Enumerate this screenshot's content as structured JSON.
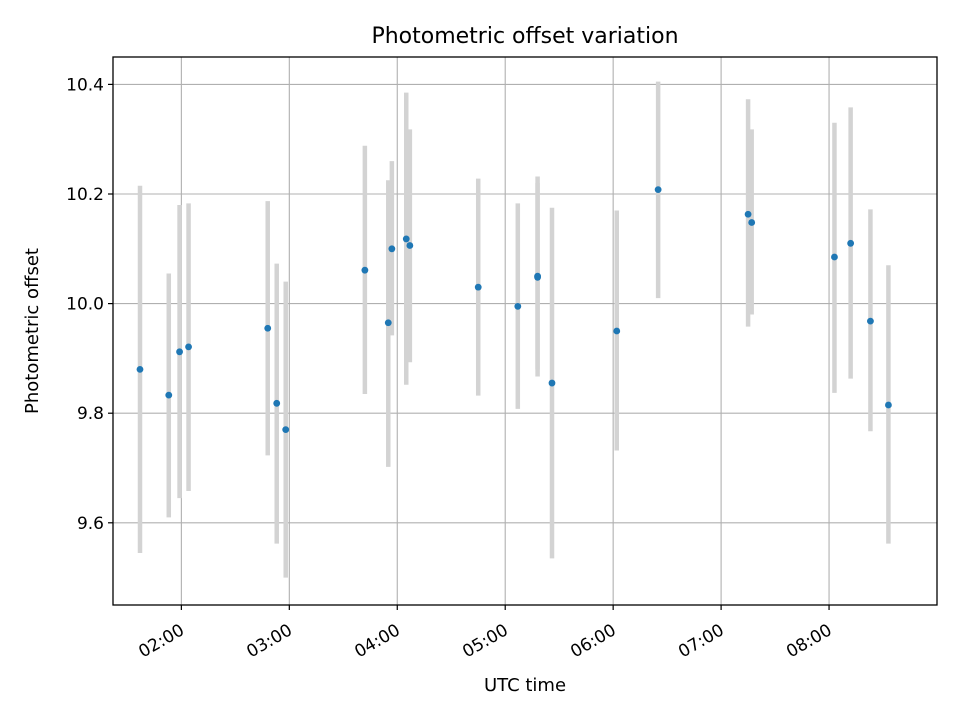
{
  "chart_data": {
    "type": "scatter",
    "title": "Photometric offset variation",
    "xlabel": "UTC time",
    "ylabel": "Photometric offset",
    "x_unit": "time of day (HH:MM, UTC)",
    "xlim": [
      "01:22",
      "09:00"
    ],
    "ylim": [
      9.45,
      10.45
    ],
    "grid": true,
    "x_ticks": [
      "02:00",
      "03:00",
      "04:00",
      "05:00",
      "06:00",
      "07:00",
      "08:00"
    ],
    "y_ticks": [
      "9.6",
      "9.8",
      "10.0",
      "10.2",
      "10.4"
    ],
    "colors": {
      "point": "#1f77b4",
      "errorbar": "#d3d3d3",
      "grid": "#b0b0b0",
      "axes": "#000000"
    },
    "points": [
      {
        "x": "01:37",
        "y": 9.88,
        "ylow": 9.545,
        "yhigh": 10.215
      },
      {
        "x": "01:53",
        "y": 9.833,
        "ylow": 9.61,
        "yhigh": 10.055
      },
      {
        "x": "01:59",
        "y": 9.912,
        "ylow": 9.645,
        "yhigh": 10.18
      },
      {
        "x": "02:04",
        "y": 9.921,
        "ylow": 9.658,
        "yhigh": 10.183
      },
      {
        "x": "02:48",
        "y": 9.955,
        "ylow": 9.723,
        "yhigh": 10.187
      },
      {
        "x": "02:53",
        "y": 9.818,
        "ylow": 9.562,
        "yhigh": 10.073
      },
      {
        "x": "02:58",
        "y": 9.77,
        "ylow": 9.5,
        "yhigh": 10.04
      },
      {
        "x": "03:42",
        "y": 10.061,
        "ylow": 9.835,
        "yhigh": 10.288
      },
      {
        "x": "03:55",
        "y": 9.965,
        "ylow": 9.702,
        "yhigh": 10.225
      },
      {
        "x": "03:57",
        "y": 10.1,
        "ylow": 9.942,
        "yhigh": 10.26
      },
      {
        "x": "04:05",
        "y": 10.118,
        "ylow": 9.852,
        "yhigh": 10.385
      },
      {
        "x": "04:07",
        "y": 10.106,
        "ylow": 9.893,
        "yhigh": 10.318
      },
      {
        "x": "04:45",
        "y": 10.03,
        "ylow": 9.832,
        "yhigh": 10.228
      },
      {
        "x": "05:07",
        "y": 9.995,
        "ylow": 9.808,
        "yhigh": 10.183
      },
      {
        "x": "05:18",
        "y": 10.05,
        "ylow": 9.867,
        "yhigh": 10.232
      },
      {
        "x": "05:18",
        "y": 10.048,
        "ylow": 9.88,
        "yhigh": 10.22
      },
      {
        "x": "05:26",
        "y": 9.855,
        "ylow": 9.535,
        "yhigh": 10.175
      },
      {
        "x": "06:02",
        "y": 9.95,
        "ylow": 9.732,
        "yhigh": 10.17
      },
      {
        "x": "06:25",
        "y": 10.208,
        "ylow": 10.01,
        "yhigh": 10.405
      },
      {
        "x": "07:15",
        "y": 10.163,
        "ylow": 9.958,
        "yhigh": 10.373
      },
      {
        "x": "07:17",
        "y": 10.148,
        "ylow": 9.98,
        "yhigh": 10.318
      },
      {
        "x": "08:03",
        "y": 10.085,
        "ylow": 9.837,
        "yhigh": 10.33
      },
      {
        "x": "08:12",
        "y": 10.11,
        "ylow": 9.863,
        "yhigh": 10.358
      },
      {
        "x": "08:23",
        "y": 9.968,
        "ylow": 9.767,
        "yhigh": 10.172
      },
      {
        "x": "08:33",
        "y": 9.815,
        "ylow": 9.562,
        "yhigh": 10.07
      }
    ]
  }
}
